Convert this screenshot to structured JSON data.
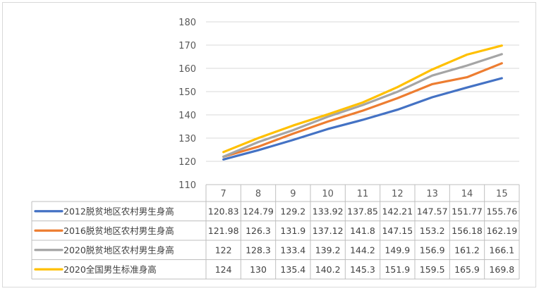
{
  "chart_data": {
    "type": "line",
    "x": [
      "7",
      "8",
      "9",
      "10",
      "11",
      "12",
      "13",
      "14",
      "15"
    ],
    "ylim": [
      110,
      180
    ],
    "yticks": [
      110,
      120,
      130,
      140,
      150,
      160,
      170,
      180
    ],
    "grid": true,
    "legend": "data-table",
    "series": [
      {
        "name": "2012脱贫地区农村男生身高",
        "color": "#4472c4",
        "values": [
          120.83,
          124.79,
          129.2,
          133.92,
          137.85,
          142.21,
          147.57,
          151.77,
          155.76
        ],
        "labels": [
          "120.83",
          "124.79",
          "129.2",
          "133.92",
          "137.85",
          "142.21",
          "147.57",
          "151.77",
          "155.76"
        ]
      },
      {
        "name": "2016脱贫地区农村男生身高",
        "color": "#ed7d31",
        "values": [
          121.98,
          126.3,
          131.9,
          137.12,
          141.8,
          147.15,
          153.2,
          156.18,
          162.19
        ],
        "labels": [
          "121.98",
          "126.3",
          "131.9",
          "137.12",
          "141.8",
          "147.15",
          "153.2",
          "156.18",
          "162.19"
        ]
      },
      {
        "name": "2020脱贫地区农村男生身高",
        "color": "#a5a5a5",
        "values": [
          122,
          128.3,
          133.4,
          139.2,
          144.2,
          149.9,
          156.9,
          161.2,
          166.1
        ],
        "labels": [
          "122",
          "128.3",
          "133.4",
          "139.2",
          "144.2",
          "149.9",
          "156.9",
          "161.2",
          "166.1"
        ]
      },
      {
        "name": "2020全国男生标准身高",
        "color": "#ffc000",
        "values": [
          124,
          130,
          135.4,
          140.2,
          145.3,
          151.9,
          159.5,
          165.9,
          169.8
        ],
        "labels": [
          "124",
          "130",
          "135.4",
          "140.2",
          "145.3",
          "151.9",
          "159.5",
          "165.9",
          "169.8"
        ]
      }
    ]
  }
}
